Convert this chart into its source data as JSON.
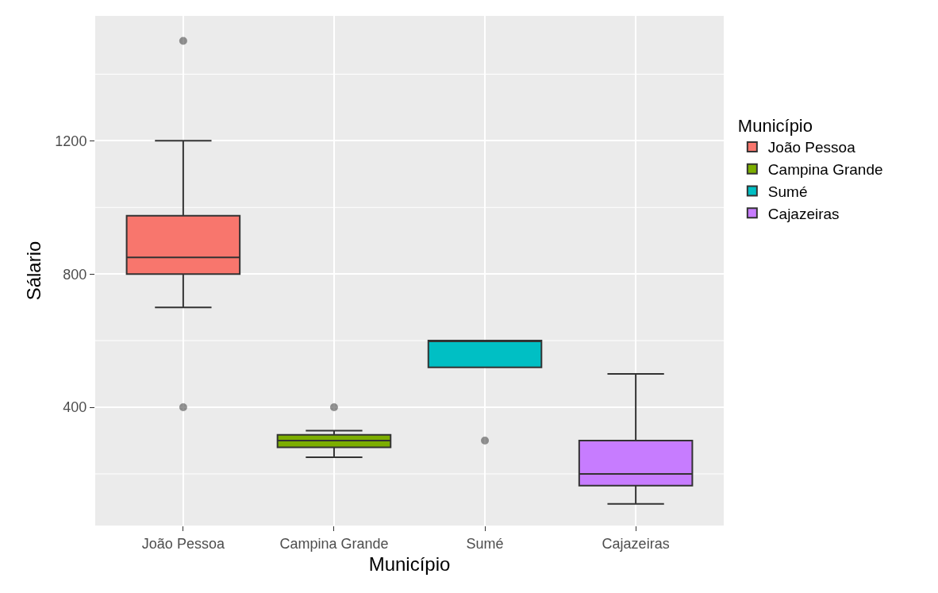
{
  "chart_data": {
    "type": "box",
    "xlabel": "Município",
    "ylabel": "Sálario",
    "legend_title": "Município",
    "categories": [
      "João Pessoa",
      "Campina Grande",
      "Sumé",
      "Cajazeiras"
    ],
    "series": [
      {
        "name": "João Pessoa",
        "color": "#f8766d",
        "boxes": [
          {
            "low": 700,
            "q1": 800,
            "median": 850,
            "q3": 975,
            "high": 1200,
            "outliers": [
              1500,
              400
            ]
          },
          null,
          null,
          null
        ]
      },
      {
        "name": "Campina Grande",
        "color": "#7cae00",
        "boxes": [
          null,
          {
            "low": 250,
            "q1": 280,
            "median": 300,
            "q3": 317,
            "high": 330,
            "outliers": [
              400
            ]
          },
          null,
          null
        ]
      },
      {
        "name": "Sumé",
        "color": "#00bfc4",
        "boxes": [
          null,
          null,
          {
            "low": 520,
            "q1": 520,
            "median": 600,
            "q3": 600,
            "high": 600,
            "outliers": [
              300
            ]
          },
          null
        ]
      },
      {
        "name": "Cajazeiras",
        "color": "#c77cff",
        "boxes": [
          null,
          null,
          null,
          {
            "low": 110,
            "q1": 165,
            "median": 200,
            "q3": 300,
            "high": 500
          }
        ]
      }
    ],
    "ylim": [
      45,
      1575
    ],
    "yticks": [
      400,
      800,
      1200
    ],
    "grid": true,
    "legend": "right"
  }
}
